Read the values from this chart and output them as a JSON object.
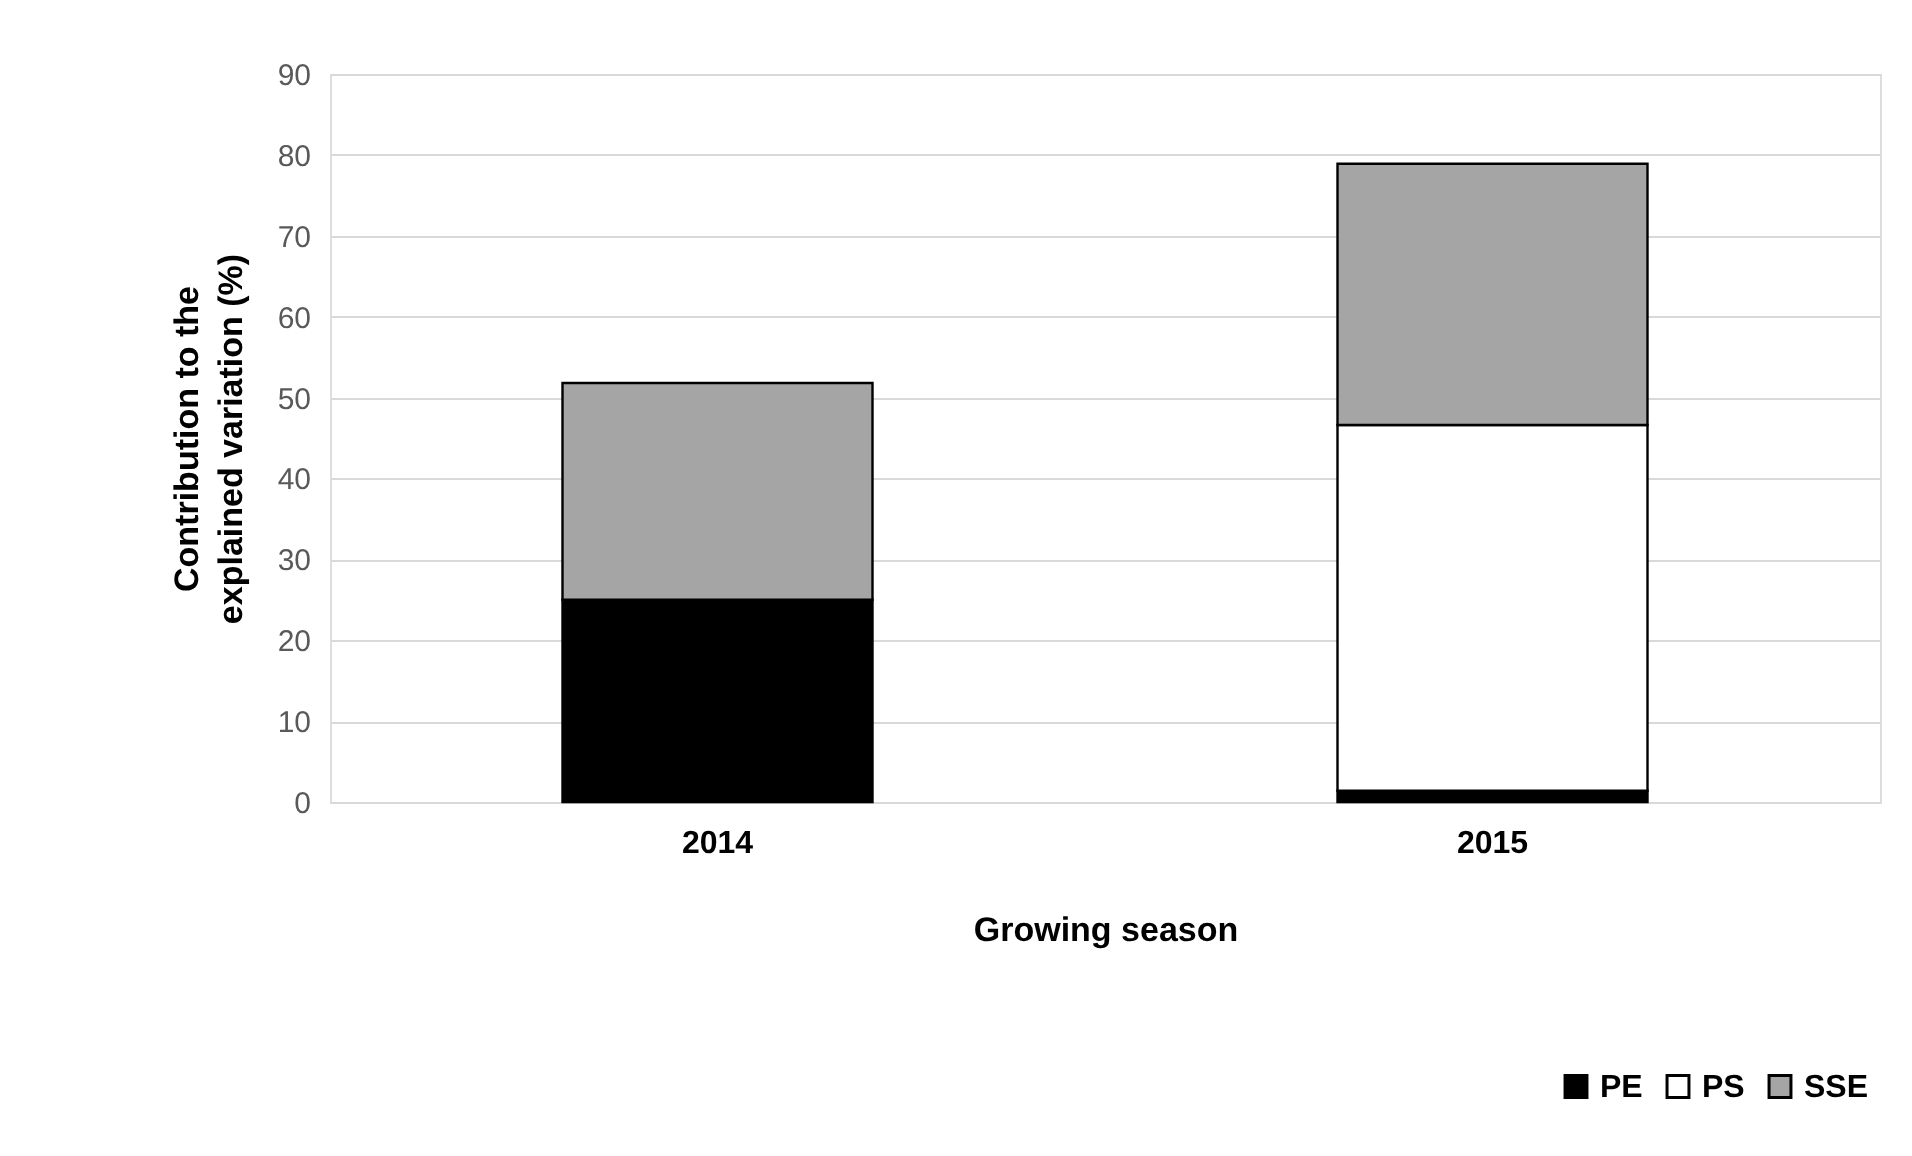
{
  "chart_data": {
    "type": "bar",
    "stacked": true,
    "xlabel": "Growing season",
    "ylabel": "Contribution to the explained variation (%)",
    "categories": [
      "2014",
      "2015"
    ],
    "series": [
      {
        "name": "PE",
        "color": "#000000",
        "values": [
          25.0,
          1.4
        ]
      },
      {
        "name": "PS",
        "color": "#ffffff",
        "values": [
          0,
          45.2
        ]
      },
      {
        "name": "SSE",
        "color": "#a5a5a5",
        "values": [
          26.8,
          32.3
        ]
      }
    ],
    "ylim": [
      0,
      90
    ],
    "yticks": [
      0,
      10,
      20,
      30,
      40,
      50,
      60,
      70,
      80,
      90
    ],
    "grid": "y",
    "legend": "bottom right"
  }
}
